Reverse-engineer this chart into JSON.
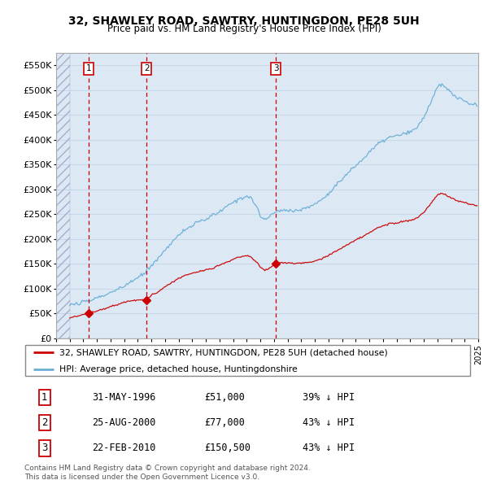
{
  "title": "32, SHAWLEY ROAD, SAWTRY, HUNTINGDON, PE28 5UH",
  "subtitle": "Price paid vs. HM Land Registry's House Price Index (HPI)",
  "xlim": [
    1994.0,
    2025.0
  ],
  "ylim": [
    0,
    575000
  ],
  "yticks": [
    0,
    50000,
    100000,
    150000,
    200000,
    250000,
    300000,
    350000,
    400000,
    450000,
    500000,
    550000
  ],
  "ytick_labels": [
    "£0",
    "£50K",
    "£100K",
    "£150K",
    "£200K",
    "£250K",
    "£300K",
    "£350K",
    "£400K",
    "£450K",
    "£500K",
    "£550K"
  ],
  "sale_dates": [
    1996.41,
    2000.64,
    2010.14
  ],
  "sale_prices": [
    51000,
    77000,
    150500
  ],
  "sale_numbers": [
    "1",
    "2",
    "3"
  ],
  "sale_vline_color": "#cc0000",
  "sale_dot_color": "#cc0000",
  "legend_line1": "32, SHAWLEY ROAD, SAWTRY, HUNTINGDON, PE28 5UH (detached house)",
  "legend_line2": "HPI: Average price, detached house, Huntingdonshire",
  "table_rows": [
    [
      "1",
      "31-MAY-1996",
      "£51,000",
      "39% ↓ HPI"
    ],
    [
      "2",
      "25-AUG-2000",
      "£77,000",
      "43% ↓ HPI"
    ],
    [
      "3",
      "22-FEB-2010",
      "£150,500",
      "43% ↓ HPI"
    ]
  ],
  "footer": "Contains HM Land Registry data © Crown copyright and database right 2024.\nThis data is licensed under the Open Government Licence v3.0.",
  "hpi_color": "#6baed6",
  "sold_color": "#cc0000",
  "plot_bg_color": "#dce9f5",
  "hatch_region_end": 1995.0,
  "data_start": 1995.0
}
